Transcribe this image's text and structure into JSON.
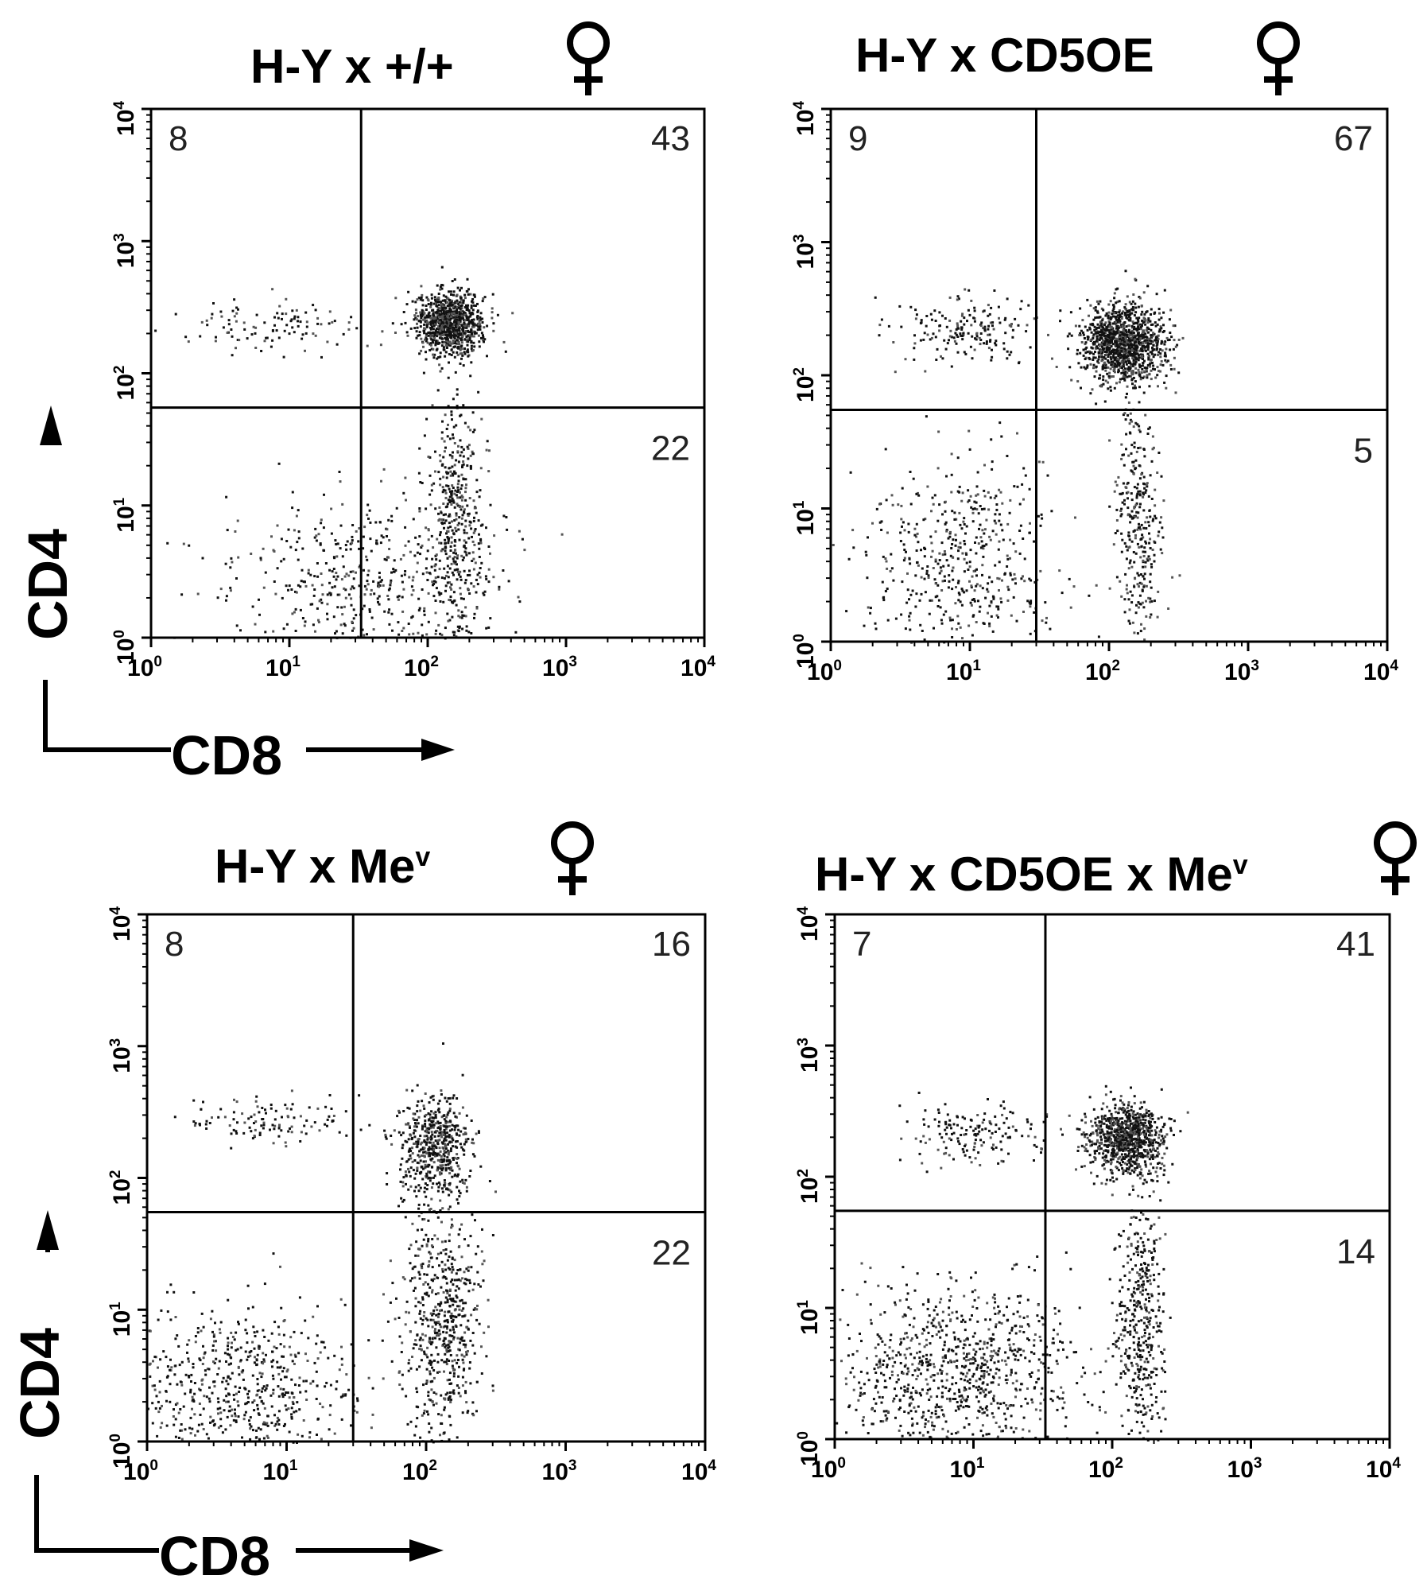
{
  "axes": {
    "x_label": "CD8",
    "y_label": "CD4",
    "tick_base": "10",
    "tick_exponents": [
      "0",
      "1",
      "2",
      "3",
      "4"
    ]
  },
  "chart_data": [
    {
      "type": "scatter",
      "title_prefix": "H-Y x ",
      "title_main": "+/+",
      "title_sup": "",
      "title_suffix": "",
      "female_symbol": "♀",
      "xlabel": "CD8",
      "ylabel": "CD4",
      "xscale": "log",
      "yscale": "log",
      "xlim": [
        1,
        10000
      ],
      "ylim": [
        1,
        10000
      ],
      "gate_x": 33,
      "gate_y": 55,
      "quadrants": {
        "upper_left": "8",
        "upper_right": "43",
        "lower_right": "22"
      },
      "populations": [
        {
          "name": "",
          "cx": 1.6,
          "cy": 0.45,
          "sx": 0.5,
          "sy": 0.35,
          "n": 520
        },
        {
          "name": "",
          "cx": 0.9,
          "cy": 2.35,
          "sx": 0.35,
          "sy": 0.1,
          "n": 110
        },
        {
          "name": "",
          "cx": 2.15,
          "cy": 2.38,
          "sx": 0.12,
          "sy": 0.12,
          "n": 900
        },
        {
          "name": "",
          "cx": 2.2,
          "cy": 0.9,
          "sx": 0.1,
          "sy": 0.55,
          "n": 420
        }
      ]
    },
    {
      "type": "scatter",
      "title_prefix": "H-Y x ",
      "title_main": "CD5OE",
      "title_sup": "",
      "title_suffix": "",
      "female_symbol": "♀",
      "xlabel": "CD8",
      "ylabel": "CD4",
      "xscale": "log",
      "yscale": "log",
      "xlim": [
        1,
        10000
      ],
      "ylim": [
        1,
        10000
      ],
      "gate_x": 30,
      "gate_y": 55,
      "quadrants": {
        "upper_left": "9",
        "upper_right": "67",
        "lower_right": "5"
      },
      "populations": [
        {
          "name": "",
          "cx": 0.9,
          "cy": 0.6,
          "sx": 0.35,
          "sy": 0.4,
          "n": 520
        },
        {
          "name": "",
          "cx": 0.95,
          "cy": 2.35,
          "sx": 0.25,
          "sy": 0.12,
          "n": 180
        },
        {
          "name": "",
          "cx": 2.1,
          "cy": 2.25,
          "sx": 0.15,
          "sy": 0.15,
          "n": 1200
        },
        {
          "name": "",
          "cx": 2.2,
          "cy": 0.9,
          "sx": 0.08,
          "sy": 0.45,
          "n": 320
        }
      ]
    },
    {
      "type": "scatter",
      "title_prefix": "H-Y x  ",
      "title_main": "Me",
      "title_sup": "v",
      "title_suffix": "",
      "female_symbol": "♀",
      "xlabel": "CD8",
      "ylabel": "CD4",
      "xscale": "log",
      "yscale": "log",
      "xlim": [
        1,
        10000
      ],
      "ylim": [
        1,
        10000
      ],
      "gate_x": 30,
      "gate_y": 55,
      "quadrants": {
        "upper_left": "8",
        "upper_right": "16",
        "lower_right": "22"
      },
      "populations": [
        {
          "name": "",
          "cx": 0.6,
          "cy": 0.4,
          "sx": 0.45,
          "sy": 0.3,
          "n": 650
        },
        {
          "name": "",
          "cx": 0.9,
          "cy": 2.45,
          "sx": 0.35,
          "sy": 0.1,
          "n": 120
        },
        {
          "name": "",
          "cx": 2.05,
          "cy": 2.25,
          "sx": 0.13,
          "sy": 0.2,
          "n": 520
        },
        {
          "name": "",
          "cx": 2.1,
          "cy": 0.9,
          "sx": 0.14,
          "sy": 0.5,
          "n": 620
        }
      ]
    },
    {
      "type": "scatter",
      "title_prefix": "H-Y x ",
      "title_main": "CD5OE x Me",
      "title_sup": "v",
      "title_suffix": "",
      "female_symbol": "♀",
      "xlabel": "CD8",
      "ylabel": "CD4",
      "xscale": "log",
      "yscale": "log",
      "xlim": [
        1,
        10000
      ],
      "ylim": [
        1,
        10000
      ],
      "gate_x": 33,
      "gate_y": 55,
      "quadrants": {
        "upper_left": "7",
        "upper_right": "41",
        "lower_right": "14"
      },
      "populations": [
        {
          "name": "",
          "cx": 0.9,
          "cy": 0.5,
          "sx": 0.45,
          "sy": 0.35,
          "n": 900
        },
        {
          "name": "",
          "cx": 1.0,
          "cy": 2.35,
          "sx": 0.28,
          "sy": 0.12,
          "n": 160
        },
        {
          "name": "",
          "cx": 2.1,
          "cy": 2.3,
          "sx": 0.14,
          "sy": 0.13,
          "n": 900
        },
        {
          "name": "",
          "cx": 2.2,
          "cy": 0.9,
          "sx": 0.08,
          "sy": 0.5,
          "n": 420
        }
      ]
    }
  ]
}
